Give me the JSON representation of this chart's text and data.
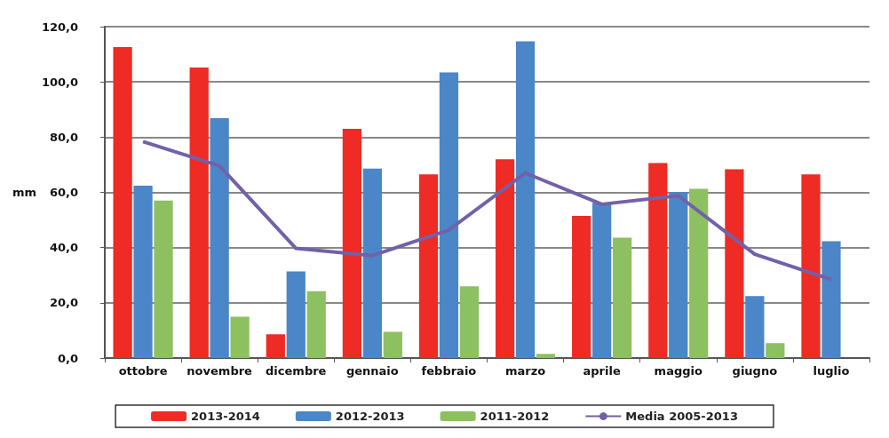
{
  "chart_data": {
    "type": "bar",
    "ylabel": "mm",
    "categories": [
      "ottobre",
      "novembre",
      "dicembre",
      "gennaio",
      "febbraio",
      "marzo",
      "aprile",
      "maggio",
      "giugno",
      "luglio"
    ],
    "series": [
      {
        "name": "2013-2014",
        "color": "#ee2b24",
        "values": [
          112.6,
          105.2,
          8.6,
          83.0,
          66.5,
          72.0,
          51.5,
          70.6,
          68.4,
          66.5
        ]
      },
      {
        "name": "2012-2013",
        "color": "#4a86c8",
        "values": [
          62.4,
          86.9,
          31.4,
          68.6,
          103.4,
          114.7,
          56.2,
          60.1,
          22.4,
          42.3
        ]
      },
      {
        "name": "2011-2012",
        "color": "#8cc061",
        "values": [
          57.0,
          15.0,
          24.2,
          9.5,
          26.0,
          1.5,
          43.6,
          61.3,
          5.4,
          null
        ]
      },
      {
        "name": "Media 2005-2013",
        "type": "line",
        "color": "#7361a8",
        "values": [
          78.4,
          69.6,
          39.7,
          37.1,
          46.4,
          67.0,
          55.7,
          58.8,
          37.6,
          28.4
        ]
      }
    ],
    "ylim": [
      0,
      120
    ],
    "yticks": [
      {
        "value": 0,
        "label": "0,0"
      },
      {
        "value": 20,
        "label": "20,0"
      },
      {
        "value": 40,
        "label": "40,0"
      },
      {
        "value": 60,
        "label": "60,0"
      },
      {
        "value": 80,
        "label": "80,0"
      },
      {
        "value": 100,
        "label": "100,0"
      },
      {
        "value": 120,
        "label": "120,0"
      }
    ],
    "grid": "y",
    "legend": "bottom",
    "marker": "none"
  }
}
